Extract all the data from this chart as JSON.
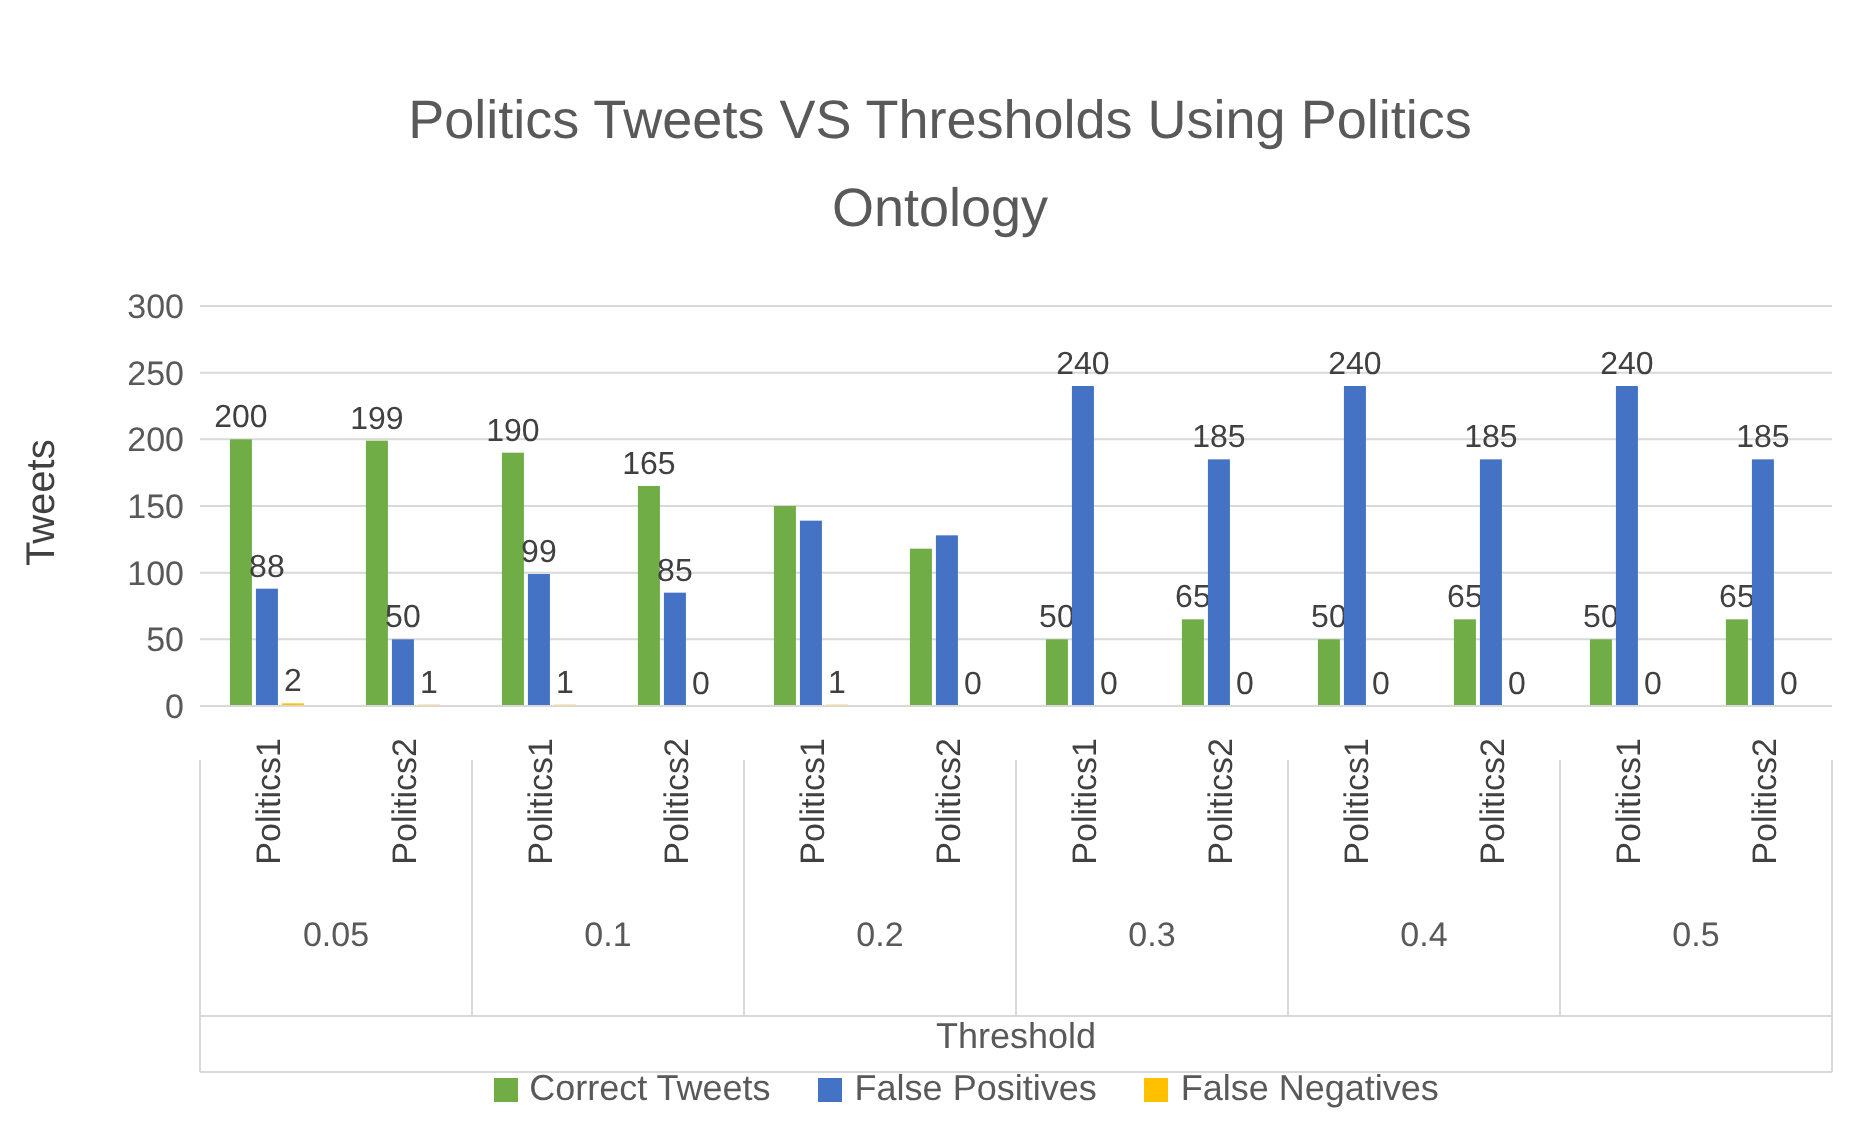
{
  "chart_data": {
    "type": "bar",
    "title": "Politics Tweets VS Thresholds Using Politics Ontology",
    "xlabel": "Threshold",
    "ylabel": "Tweets",
    "categories": [
      "Politics1",
      "Politics2",
      "Politics1",
      "Politics2",
      "Politics1",
      "Politics2",
      "Politics1",
      "Politics2",
      "Politics1",
      "Politics2",
      "Politics1",
      "Politics2"
    ],
    "annotations": [
      "0.05",
      "0.1",
      "0.2",
      "0.3",
      "0.4",
      "0.5"
    ],
    "series": [
      {
        "name": "Correct Tweets",
        "color": "#70ad47",
        "values": [
          200,
          199,
          190,
          165,
          150,
          118,
          50,
          65,
          50,
          65,
          50,
          65
        ],
        "value_labels": [
          "200",
          "199",
          "190",
          "165",
          null,
          null,
          "50",
          "65",
          "50",
          "65",
          "50",
          "65"
        ]
      },
      {
        "name": "False Positives",
        "color": "#4472c4",
        "values": [
          88,
          50,
          99,
          85,
          139,
          128,
          240,
          185,
          240,
          185,
          240,
          185
        ],
        "value_labels": [
          "88",
          "50",
          "99",
          "85",
          null,
          null,
          "240",
          "185",
          "240",
          "185",
          "240",
          "185"
        ]
      },
      {
        "name": "False Negatives",
        "color": "#ffc000",
        "values": [
          2,
          1,
          1,
          0,
          1,
          0,
          0,
          0,
          0,
          0,
          0,
          0
        ],
        "value_labels": [
          "2",
          "1",
          "1",
          "0",
          "1",
          "0",
          "0",
          "0",
          "0",
          "0",
          "0",
          "0"
        ]
      }
    ],
    "ylim": [
      0,
      300
    ],
    "yticks": [
      0,
      50,
      100,
      150,
      200,
      250,
      300
    ],
    "grid": "y",
    "legend": "bottom"
  }
}
